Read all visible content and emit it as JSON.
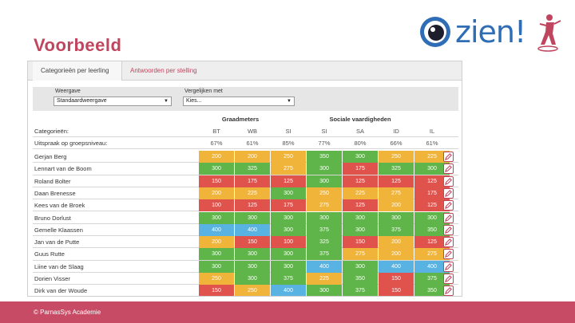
{
  "slide": {
    "title": "Voorbeeld",
    "footer": "© ParnasSys Academie"
  },
  "logo": {
    "text": "zien!"
  },
  "tabs": [
    {
      "label": "Categorieën per leerling",
      "active": true
    },
    {
      "label": "Antwoorden per stelling",
      "active": false
    }
  ],
  "filters": {
    "weergave_label": "Weergave",
    "weergave_value": "Standaardweergave",
    "vergelijk_label": "Vergelijken met",
    "vergelijk_value": "Kies..."
  },
  "groups": {
    "graadmeters": "Graadmeters",
    "sociale": "Sociale vaardigheden"
  },
  "header": {
    "categories_label": "Categorieën:",
    "columns": [
      "BT",
      "WB",
      "SI",
      "SI",
      "SA",
      "ID",
      "IL"
    ]
  },
  "summary": {
    "label": "Uitspraak op groepsniveau:",
    "values": [
      "67%",
      "61%",
      "85%",
      "77%",
      "80%",
      "66%",
      "61%"
    ]
  },
  "students": [
    {
      "name": "Gerjan Berg",
      "scores": [
        200,
        200,
        250,
        350,
        300,
        250,
        225
      ]
    },
    {
      "name": "Lennart van de Boom",
      "scores": [
        300,
        325,
        275,
        300,
        175,
        325,
        300
      ]
    },
    {
      "name": "Roland Bolter",
      "scores": [
        150,
        175,
        125,
        300,
        125,
        125,
        125
      ]
    },
    {
      "name": "Daan Brenesse",
      "scores": [
        200,
        225,
        300,
        250,
        225,
        275,
        175
      ]
    },
    {
      "name": "Kees van de Broek",
      "scores": [
        100,
        125,
        175,
        275,
        125,
        200,
        125
      ]
    },
    {
      "name": "Bruno Dorlust",
      "scores": [
        300,
        300,
        300,
        300,
        300,
        300,
        300
      ]
    },
    {
      "name": "Gemelle Klaassen",
      "scores": [
        400,
        400,
        300,
        375,
        300,
        375,
        350
      ]
    },
    {
      "name": "Jan van de Putte",
      "scores": [
        200,
        150,
        100,
        325,
        150,
        200,
        125
      ]
    },
    {
      "name": "Guus Rutte",
      "scores": [
        300,
        300,
        300,
        375,
        275,
        200,
        275
      ]
    },
    {
      "name": "Liine van de Slaag",
      "scores": [
        300,
        300,
        300,
        400,
        300,
        400,
        400
      ]
    },
    {
      "name": "Dorien Visser",
      "scores": [
        250,
        300,
        375,
        225,
        350,
        150,
        375
      ]
    },
    {
      "name": "Dirk van der Woude",
      "scores": [
        150,
        250,
        400,
        300,
        375,
        150,
        350
      ]
    }
  ],
  "colors": {
    "accent": "#c0455f",
    "logo_blue": "#2f6db5",
    "red": "#e0524c",
    "orange": "#f0b43a",
    "green": "#5fb549",
    "blue": "#58b3e3"
  },
  "icons": {
    "edit": "pencil-icon",
    "logo": "eye-icon"
  }
}
